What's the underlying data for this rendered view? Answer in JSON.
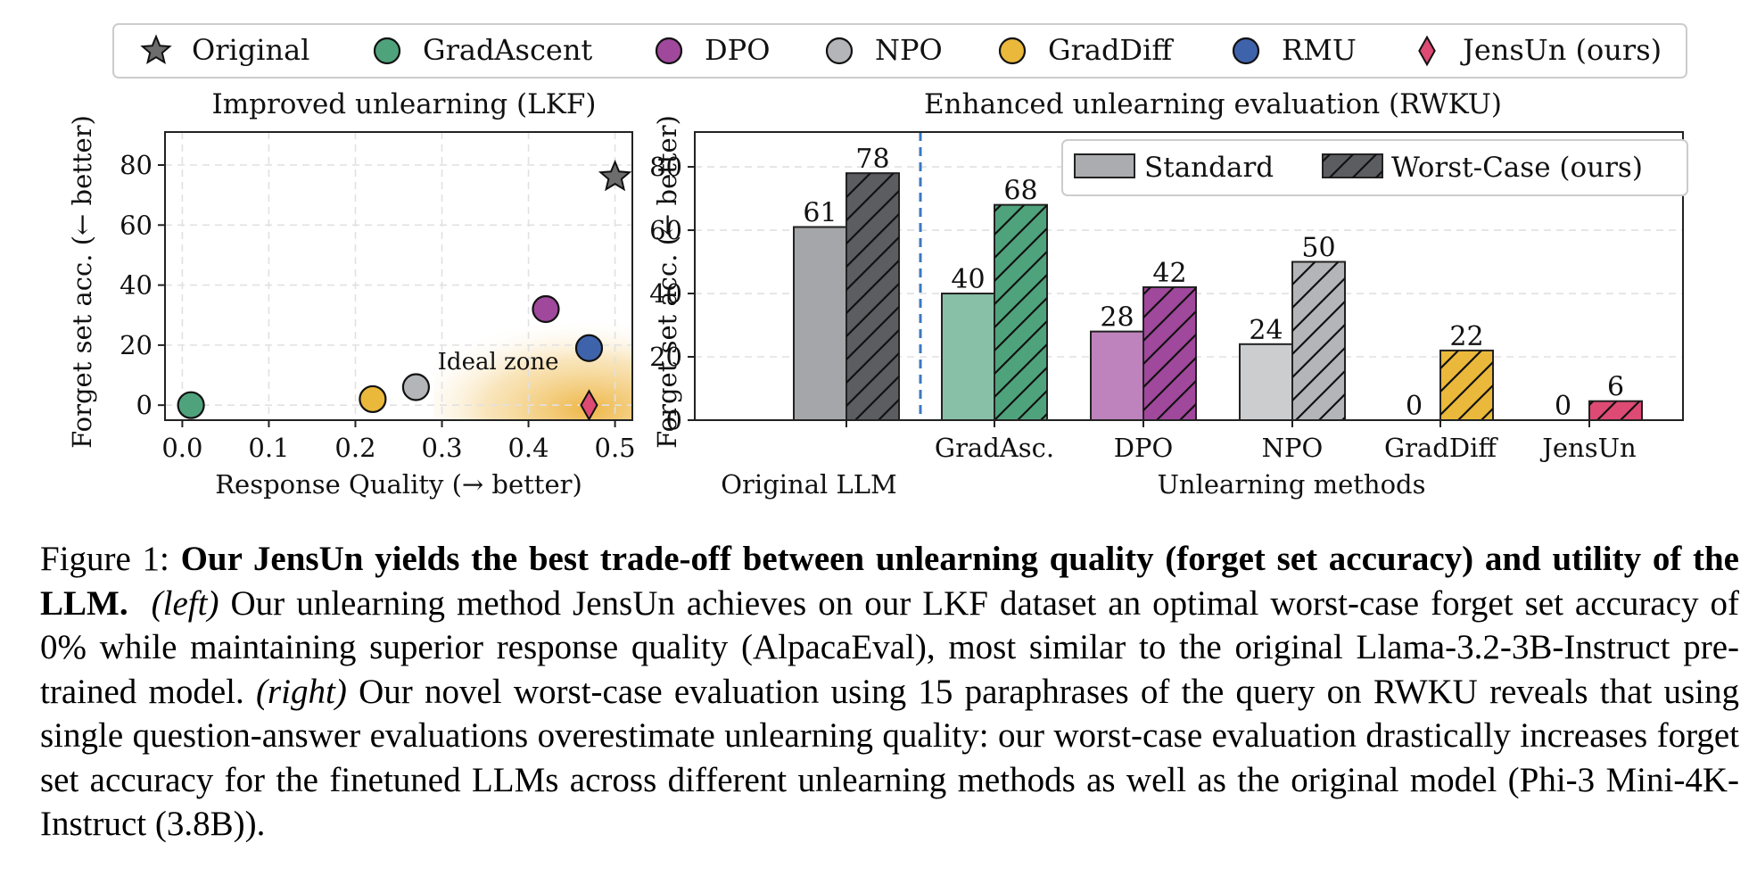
{
  "legend": {
    "items": [
      {
        "label": "Original",
        "marker": "star",
        "color": "#6d6d6d"
      },
      {
        "label": "GradAscent",
        "marker": "circle",
        "color": "#4fa37c"
      },
      {
        "label": "DPO",
        "marker": "circle",
        "color": "#a0489c"
      },
      {
        "label": "NPO",
        "marker": "circle",
        "color": "#b3b5b8"
      },
      {
        "label": "GradDiff",
        "marker": "circle",
        "color": "#eab83a"
      },
      {
        "label": "RMU",
        "marker": "circle",
        "color": "#3f63ab"
      },
      {
        "label": "JensUn (ours)",
        "marker": "diamond",
        "color": "#dd4a74"
      }
    ]
  },
  "chart_data": [
    {
      "type": "scatter",
      "title": "Improved unlearning (LKF)",
      "xlabel": "Response Quality (→ better)",
      "ylabel": "Forget set acc. (← better)",
      "xlim": [
        -0.02,
        0.52
      ],
      "ylim": [
        -5,
        91
      ],
      "xticks": [
        0.0,
        0.1,
        0.2,
        0.3,
        0.4,
        0.5
      ],
      "yticks": [
        0,
        20,
        40,
        60,
        80
      ],
      "grid": true,
      "annotation": "Ideal zone",
      "points": [
        {
          "name": "Original",
          "x": 0.5,
          "y": 76,
          "marker": "star",
          "color": "#6d6d6d"
        },
        {
          "name": "GradAscent",
          "x": 0.01,
          "y": 0,
          "marker": "circle",
          "color": "#4fa37c"
        },
        {
          "name": "GradDiff",
          "x": 0.22,
          "y": 2,
          "marker": "circle",
          "color": "#eab83a"
        },
        {
          "name": "NPO",
          "x": 0.27,
          "y": 6,
          "marker": "circle",
          "color": "#b3b5b8"
        },
        {
          "name": "DPO",
          "x": 0.42,
          "y": 32,
          "marker": "circle",
          "color": "#a0489c"
        },
        {
          "name": "RMU",
          "x": 0.47,
          "y": 19,
          "marker": "circle",
          "color": "#3f63ab"
        },
        {
          "name": "JensUn (ours)",
          "x": 0.47,
          "y": 0,
          "marker": "diamond",
          "color": "#dd4a74"
        }
      ]
    },
    {
      "type": "bar",
      "title": "Enhanced unlearning evaluation (RWKU)",
      "xlabel": "Unlearning methods",
      "baseline_label": "Original LLM",
      "ylabel": "Forget set acc. (← better)",
      "ylim": [
        0,
        91
      ],
      "yticks": [
        0,
        20,
        40,
        60,
        80
      ],
      "grid": true,
      "legend_position": "top-right",
      "categories": [
        "",
        "GradAsc.",
        "DPO",
        "NPO",
        "GradDiff",
        "JensUn"
      ],
      "colors": [
        "#6d6d6d",
        "#4fa37c",
        "#a0489c",
        "#b3b5b8",
        "#eab83a",
        "#dd4a74"
      ],
      "series": [
        {
          "name": "Standard",
          "values": [
            61,
            40,
            28,
            24,
            0,
            0
          ]
        },
        {
          "name": "Worst-Case (ours)",
          "values": [
            78,
            68,
            42,
            50,
            22,
            6
          ]
        }
      ]
    }
  ],
  "caption": {
    "prefix": "Figure 1: ",
    "bold": "Our JensUn yields the best trade-off between unlearning quality (forget set accuracy) and utility of the LLM.",
    "left_tag": "(left)",
    "left_text": " Our unlearning method JensUn achieves on our LKF dataset an optimal worst-case forget set accuracy of 0% while maintaining superior response quality (AlpacaEval), most similar to the original Llama-3.2-3B-Instruct pre-trained model. ",
    "right_tag": "(right)",
    "right_text": " Our novel worst-case evaluation using 15 paraphrases of the query on RWKU reveals that using single question-answer evaluations overestimate unlearning quality: our worst-case evaluation drastically increases forget set accuracy for the finetuned LLMs across different unlearning methods as well as the original model (Phi-3 Mini-4K-Instruct (3.8B))."
  }
}
